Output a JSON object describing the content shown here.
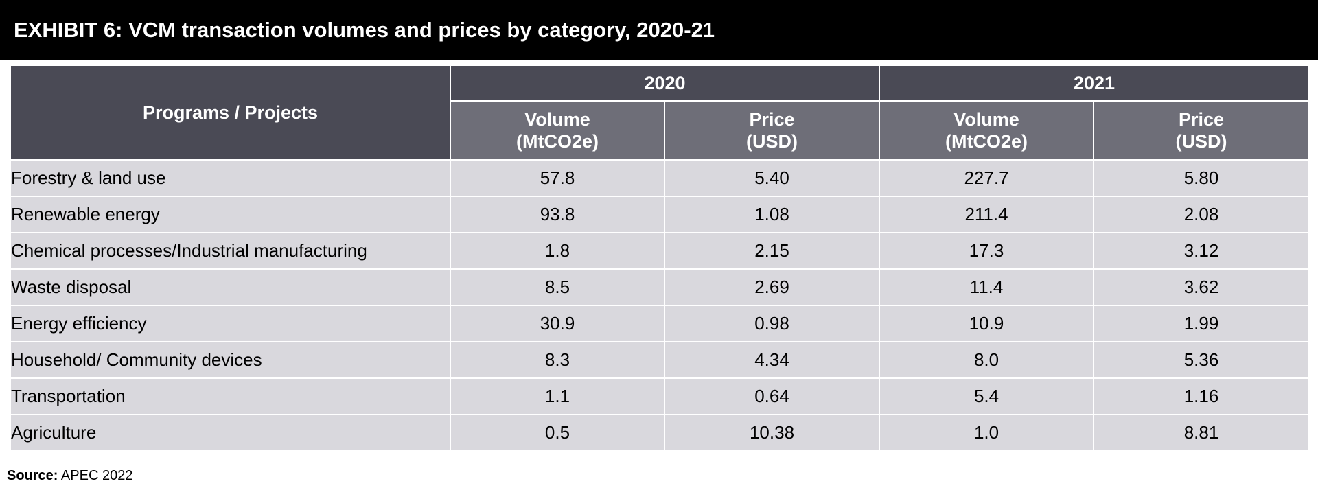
{
  "title": "EXHIBIT 6: VCM transaction volumes and prices by category, 2020-21",
  "table": {
    "row_header": "Programs / Projects",
    "years": [
      "2020",
      "2021"
    ],
    "sub_headers": {
      "volume_line1": "Volume",
      "volume_line2": "(MtCO2e)",
      "price_line1": "Price",
      "price_line2": "(USD)"
    },
    "rows": [
      {
        "label": "Forestry & land use",
        "v2020": "57.8",
        "p2020": "5.40",
        "v2021": "227.7",
        "p2021": "5.80"
      },
      {
        "label": "Renewable energy",
        "v2020": "93.8",
        "p2020": "1.08",
        "v2021": "211.4",
        "p2021": "2.08"
      },
      {
        "label": "Chemical processes/Industrial manufacturing",
        "v2020": "1.8",
        "p2020": "2.15",
        "v2021": "17.3",
        "p2021": "3.12"
      },
      {
        "label": "Waste disposal",
        "v2020": "8.5",
        "p2020": "2.69",
        "v2021": "11.4",
        "p2021": "3.62"
      },
      {
        "label": "Energy efficiency",
        "v2020": "30.9",
        "p2020": "0.98",
        "v2021": "10.9",
        "p2021": "1.99"
      },
      {
        "label": "Household/ Community devices",
        "v2020": "8.3",
        "p2020": "4.34",
        "v2021": "8.0",
        "p2021": "5.36"
      },
      {
        "label": "Transportation",
        "v2020": "1.1",
        "p2020": "0.64",
        "v2021": "5.4",
        "p2021": "1.16"
      },
      {
        "label": "Agriculture",
        "v2020": "0.5",
        "p2020": "10.38",
        "v2021": "1.0",
        "p2021": "8.81"
      }
    ]
  },
  "source": {
    "label": "Source:",
    "text": " APEC 2022"
  },
  "colors": {
    "title_bg": "#000000",
    "header_dark": "#4a4a55",
    "header_mid": "#6e6e78",
    "cell_bg": "#d9d8dd"
  }
}
